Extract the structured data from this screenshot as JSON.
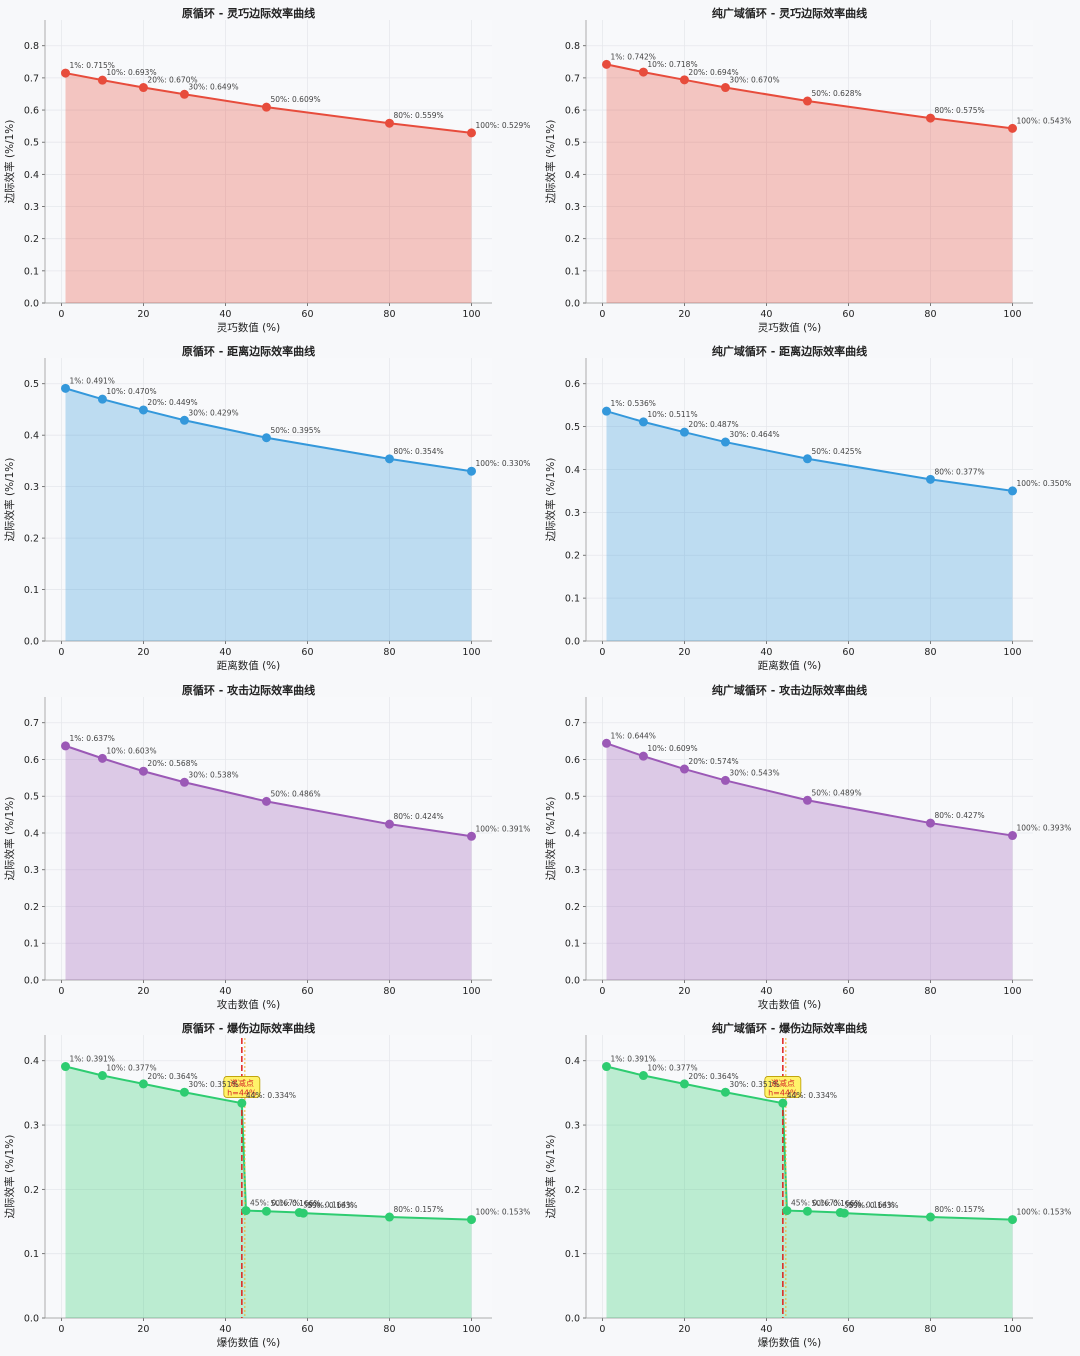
{
  "colors": {
    "dex": "#e74c3c",
    "dist": "#3498db",
    "atk": "#9b59b6",
    "crit": "#2ecc71",
    "break": "#e0201e"
  },
  "chart_data": [
    {
      "type": "area",
      "title": "原循环 - 灵巧边际效率曲线",
      "xlabel": "灵巧数值 (%)",
      "ylabel": "边际效率 (%/1%)",
      "color_key": "dex",
      "xlim": [
        0,
        100
      ],
      "ylim": [
        0,
        0.8
      ],
      "xticks": [
        0,
        20,
        40,
        60,
        80,
        100
      ],
      "yticks": [
        0,
        0.1,
        0.2,
        0.3,
        0.4,
        0.5,
        0.6,
        0.7,
        0.8
      ],
      "points": [
        {
          "x": 1,
          "y": 0.715,
          "label": "1%: 0.715%"
        },
        {
          "x": 10,
          "y": 0.693,
          "label": "10%: 0.693%"
        },
        {
          "x": 20,
          "y": 0.67,
          "label": "20%: 0.670%"
        },
        {
          "x": 30,
          "y": 0.649,
          "label": "30%: 0.649%"
        },
        {
          "x": 50,
          "y": 0.609,
          "label": "50%: 0.609%"
        },
        {
          "x": 80,
          "y": 0.559,
          "label": "80%: 0.559%"
        },
        {
          "x": 100,
          "y": 0.529,
          "label": "100%: 0.529%"
        }
      ]
    },
    {
      "type": "area",
      "title": "纯广域循环 - 灵巧边际效率曲线",
      "xlabel": "灵巧数值 (%)",
      "ylabel": "边际效率 (%/1%)",
      "color_key": "dex",
      "xlim": [
        0,
        100
      ],
      "ylim": [
        0,
        0.8
      ],
      "xticks": [
        0,
        20,
        40,
        60,
        80,
        100
      ],
      "yticks": [
        0,
        0.1,
        0.2,
        0.3,
        0.4,
        0.5,
        0.6,
        0.7,
        0.8
      ],
      "points": [
        {
          "x": 1,
          "y": 0.742,
          "label": "1%: 0.742%"
        },
        {
          "x": 10,
          "y": 0.718,
          "label": "10%: 0.718%"
        },
        {
          "x": 20,
          "y": 0.694,
          "label": "20%: 0.694%"
        },
        {
          "x": 30,
          "y": 0.67,
          "label": "30%: 0.670%"
        },
        {
          "x": 50,
          "y": 0.628,
          "label": "50%: 0.628%"
        },
        {
          "x": 80,
          "y": 0.575,
          "label": "80%: 0.575%"
        },
        {
          "x": 100,
          "y": 0.543,
          "label": "100%: 0.543%"
        }
      ]
    },
    {
      "type": "area",
      "title": "原循环 - 距离边际效率曲线",
      "xlabel": "距离数值 (%)",
      "ylabel": "边际效率 (%/1%)",
      "color_key": "dist",
      "xlim": [
        0,
        100
      ],
      "ylim": [
        0,
        0.5
      ],
      "xticks": [
        0,
        20,
        40,
        60,
        80,
        100
      ],
      "yticks": [
        0,
        0.1,
        0.2,
        0.3,
        0.4,
        0.5
      ],
      "points": [
        {
          "x": 1,
          "y": 0.491,
          "label": "1%: 0.491%"
        },
        {
          "x": 10,
          "y": 0.47,
          "label": "10%: 0.470%"
        },
        {
          "x": 20,
          "y": 0.449,
          "label": "20%: 0.449%"
        },
        {
          "x": 30,
          "y": 0.429,
          "label": "30%: 0.429%"
        },
        {
          "x": 50,
          "y": 0.395,
          "label": "50%: 0.395%"
        },
        {
          "x": 80,
          "y": 0.354,
          "label": "80%: 0.354%"
        },
        {
          "x": 100,
          "y": 0.33,
          "label": "100%: 0.330%"
        }
      ]
    },
    {
      "type": "area",
      "title": "纯广域循环 - 距离边际效率曲线",
      "xlabel": "距离数值 (%)",
      "ylabel": "边际效率 (%/1%)",
      "color_key": "dist",
      "xlim": [
        0,
        100
      ],
      "ylim": [
        0,
        0.6
      ],
      "xticks": [
        0,
        20,
        40,
        60,
        80,
        100
      ],
      "yticks": [
        0,
        0.1,
        0.2,
        0.3,
        0.4,
        0.5,
        0.6
      ],
      "points": [
        {
          "x": 1,
          "y": 0.536,
          "label": "1%: 0.536%"
        },
        {
          "x": 10,
          "y": 0.511,
          "label": "10%: 0.511%"
        },
        {
          "x": 20,
          "y": 0.487,
          "label": "20%: 0.487%"
        },
        {
          "x": 30,
          "y": 0.464,
          "label": "30%: 0.464%"
        },
        {
          "x": 50,
          "y": 0.425,
          "label": "50%: 0.425%"
        },
        {
          "x": 80,
          "y": 0.377,
          "label": "80%: 0.377%"
        },
        {
          "x": 100,
          "y": 0.35,
          "label": "100%: 0.350%"
        }
      ]
    },
    {
      "type": "area",
      "title": "原循环 - 攻击边际效率曲线",
      "xlabel": "攻击数值 (%)",
      "ylabel": "边际效率 (%/1%)",
      "color_key": "atk",
      "xlim": [
        0,
        100
      ],
      "ylim": [
        0,
        0.7
      ],
      "xticks": [
        0,
        20,
        40,
        60,
        80,
        100
      ],
      "yticks": [
        0,
        0.1,
        0.2,
        0.3,
        0.4,
        0.5,
        0.6,
        0.7
      ],
      "points": [
        {
          "x": 1,
          "y": 0.637,
          "label": "1%: 0.637%"
        },
        {
          "x": 10,
          "y": 0.603,
          "label": "10%: 0.603%"
        },
        {
          "x": 20,
          "y": 0.568,
          "label": "20%: 0.568%"
        },
        {
          "x": 30,
          "y": 0.538,
          "label": "30%: 0.538%"
        },
        {
          "x": 50,
          "y": 0.486,
          "label": "50%: 0.486%"
        },
        {
          "x": 80,
          "y": 0.424,
          "label": "80%: 0.424%"
        },
        {
          "x": 100,
          "y": 0.391,
          "label": "100%: 0.391%"
        }
      ]
    },
    {
      "type": "area",
      "title": "纯广域循环 - 攻击边际效率曲线",
      "xlabel": "攻击数值 (%)",
      "ylabel": "边际效率 (%/1%)",
      "color_key": "atk",
      "xlim": [
        0,
        100
      ],
      "ylim": [
        0,
        0.7
      ],
      "xticks": [
        0,
        20,
        40,
        60,
        80,
        100
      ],
      "yticks": [
        0,
        0.1,
        0.2,
        0.3,
        0.4,
        0.5,
        0.6,
        0.7
      ],
      "points": [
        {
          "x": 1,
          "y": 0.644,
          "label": "1%: 0.644%"
        },
        {
          "x": 10,
          "y": 0.609,
          "label": "10%: 0.609%"
        },
        {
          "x": 20,
          "y": 0.574,
          "label": "20%: 0.574%"
        },
        {
          "x": 30,
          "y": 0.543,
          "label": "30%: 0.543%"
        },
        {
          "x": 50,
          "y": 0.489,
          "label": "50%: 0.489%"
        },
        {
          "x": 80,
          "y": 0.427,
          "label": "80%: 0.427%"
        },
        {
          "x": 100,
          "y": 0.393,
          "label": "100%: 0.393%"
        }
      ]
    },
    {
      "type": "area",
      "title": "原循环 - 爆伤边际效率曲线",
      "xlabel": "爆伤数值 (%)",
      "ylabel": "边际效率 (%/1%)",
      "color_key": "crit",
      "xlim": [
        0,
        100
      ],
      "ylim": [
        0,
        0.4
      ],
      "xticks": [
        0,
        20,
        40,
        60,
        80,
        100
      ],
      "yticks": [
        0,
        0.1,
        0.2,
        0.3,
        0.4
      ],
      "breakpoint": {
        "x": 44,
        "label_line1": "递减点",
        "label_line2": "h=44%"
      },
      "points": [
        {
          "x": 1,
          "y": 0.391,
          "label": "1%: 0.391%"
        },
        {
          "x": 10,
          "y": 0.377,
          "label": "10%: 0.377%"
        },
        {
          "x": 20,
          "y": 0.364,
          "label": "20%: 0.364%"
        },
        {
          "x": 30,
          "y": 0.351,
          "label": "30%: 0.351%"
        },
        {
          "x": 44,
          "y": 0.334,
          "label": "44%: 0.334%"
        },
        {
          "x": 45,
          "y": 0.167,
          "label": "45%: 0.167%"
        },
        {
          "x": 50,
          "y": 0.166,
          "label": "50%: 0.166%"
        },
        {
          "x": 58,
          "y": 0.164,
          "label": "58%: 0.164%"
        },
        {
          "x": 59,
          "y": 0.163,
          "label": "59%: 0.163%"
        },
        {
          "x": 80,
          "y": 0.157,
          "label": "80%: 0.157%"
        },
        {
          "x": 100,
          "y": 0.153,
          "label": "100%: 0.153%"
        }
      ]
    },
    {
      "type": "area",
      "title": "纯广域循环 - 爆伤边际效率曲线",
      "xlabel": "爆伤数值 (%)",
      "ylabel": "边际效率 (%/1%)",
      "color_key": "crit",
      "xlim": [
        0,
        100
      ],
      "ylim": [
        0,
        0.4
      ],
      "xticks": [
        0,
        20,
        40,
        60,
        80,
        100
      ],
      "yticks": [
        0,
        0.1,
        0.2,
        0.3,
        0.4
      ],
      "breakpoint": {
        "x": 44,
        "label_line1": "递减点",
        "label_line2": "h=44%"
      },
      "points": [
        {
          "x": 1,
          "y": 0.391,
          "label": "1%: 0.391%"
        },
        {
          "x": 10,
          "y": 0.377,
          "label": "10%: 0.377%"
        },
        {
          "x": 20,
          "y": 0.364,
          "label": "20%: 0.364%"
        },
        {
          "x": 30,
          "y": 0.351,
          "label": "30%: 0.351%"
        },
        {
          "x": 44,
          "y": 0.334,
          "label": "44%: 0.334%"
        },
        {
          "x": 45,
          "y": 0.167,
          "label": "45%: 0.167%"
        },
        {
          "x": 50,
          "y": 0.166,
          "label": "50%: 0.166%"
        },
        {
          "x": 58,
          "y": 0.164,
          "label": "58%: 0.164%"
        },
        {
          "x": 59,
          "y": 0.163,
          "label": "59%: 0.163%"
        },
        {
          "x": 80,
          "y": 0.157,
          "label": "80%: 0.157%"
        },
        {
          "x": 100,
          "y": 0.153,
          "label": "100%: 0.153%"
        }
      ]
    }
  ]
}
